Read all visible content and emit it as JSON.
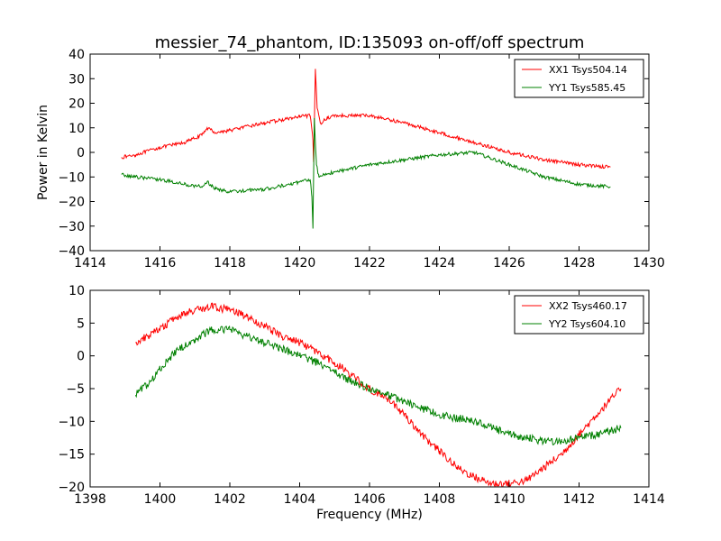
{
  "figure": {
    "title": "messier_74_phantom, ID:135093 on-off/off spectrum"
  },
  "chart_data": [
    {
      "type": "line",
      "title": "messier_74_phantom, ID:135093 on-off/off spectrum",
      "xlabel": "",
      "ylabel": "Power in Kelvin",
      "xlim": [
        1414,
        1430
      ],
      "ylim": [
        -40,
        40
      ],
      "xticks": [
        1414,
        1416,
        1418,
        1420,
        1422,
        1424,
        1426,
        1428,
        1430
      ],
      "yticks": [
        -40,
        -30,
        -20,
        -10,
        0,
        10,
        20,
        30,
        40
      ],
      "xtick_labels": [
        "1414",
        "1416",
        "1418",
        "1420",
        "1422",
        "1424",
        "1426",
        "1428",
        "1430"
      ],
      "ytick_labels": [
        "−40",
        "−30",
        "−20",
        "−10",
        "0",
        "10",
        "20",
        "30",
        "40"
      ],
      "grid": false,
      "legend": "top-right",
      "x_range": [
        1414.9,
        1428.9
      ],
      "series": [
        {
          "name": "XX1 Tsys504.14",
          "color": "#ff0000",
          "noise": 0.7,
          "x": [
            1414.9,
            1415.3,
            1416.0,
            1416.7,
            1417.2,
            1417.35,
            1417.6,
            1418.0,
            1419.0,
            1420.0,
            1420.3,
            1420.38,
            1420.4,
            1420.45,
            1420.5,
            1420.6,
            1420.8,
            1421.0,
            1422.0,
            1423.0,
            1424.0,
            1425.0,
            1426.0,
            1427.0,
            1428.0,
            1428.9
          ],
          "y": [
            -2,
            -1,
            2,
            4,
            7,
            10,
            8,
            9,
            12,
            14.5,
            15,
            5,
            -4,
            34,
            18,
            12,
            14,
            15,
            15,
            12,
            8,
            4,
            0,
            -3,
            -5,
            -6
          ]
        },
        {
          "name": "YY1 Tsys585.45",
          "color": "#008000",
          "noise": 0.7,
          "x": [
            1414.9,
            1415.3,
            1416.0,
            1416.7,
            1417.2,
            1417.35,
            1417.6,
            1418.0,
            1419.0,
            1420.0,
            1420.3,
            1420.35,
            1420.38,
            1420.42,
            1420.48,
            1420.55,
            1420.7,
            1421.0,
            1422.0,
            1423.0,
            1424.0,
            1425.0,
            1426.0,
            1427.0,
            1428.0,
            1428.9
          ],
          "y": [
            -9,
            -10,
            -11,
            -13,
            -14,
            -12,
            -15,
            -16,
            -15,
            -12,
            -11,
            -18,
            -31,
            14,
            -5,
            -10,
            -9,
            -8,
            -5,
            -3,
            -1,
            0,
            -5,
            -10,
            -13,
            -14
          ]
        }
      ]
    },
    {
      "type": "line",
      "title": "",
      "xlabel": "Frequency (MHz)",
      "ylabel": "",
      "xlim": [
        1398,
        1414
      ],
      "ylim": [
        -20,
        10
      ],
      "xticks": [
        1398,
        1400,
        1402,
        1404,
        1406,
        1408,
        1410,
        1412,
        1414
      ],
      "yticks": [
        -20,
        -15,
        -10,
        -5,
        0,
        5,
        10
      ],
      "xtick_labels": [
        "1398",
        "1400",
        "1402",
        "1404",
        "1406",
        "1408",
        "1410",
        "1412",
        "1414"
      ],
      "ytick_labels": [
        "−20",
        "−15",
        "−10",
        "−5",
        "0",
        "5",
        "10"
      ],
      "grid": false,
      "legend": "top-right",
      "x_range": [
        1399.3,
        1413.2
      ],
      "series": [
        {
          "name": "XX2 Tsys460.17",
          "color": "#ff0000",
          "noise": 0.6,
          "x": [
            1399.3,
            1400.0,
            1400.5,
            1401.0,
            1401.5,
            1402.0,
            1402.5,
            1403.0,
            1403.5,
            1404.0,
            1404.5,
            1405.0,
            1405.5,
            1406.0,
            1406.5,
            1407.0,
            1407.5,
            1408.0,
            1408.5,
            1409.0,
            1409.5,
            1410.0,
            1410.5,
            1411.0,
            1411.5,
            1412.0,
            1412.5,
            1413.2
          ],
          "y": [
            2,
            4,
            6,
            7,
            7.5,
            7,
            6,
            4.5,
            3,
            2,
            0.5,
            -1,
            -3,
            -5,
            -6.5,
            -9,
            -12,
            -14.5,
            -17,
            -18.5,
            -19.5,
            -19.5,
            -19,
            -17,
            -15,
            -12,
            -9,
            -5
          ]
        },
        {
          "name": "YY2 Tsys604.10",
          "color": "#008000",
          "noise": 0.6,
          "x": [
            1399.3,
            1399.7,
            1400.0,
            1400.5,
            1401.0,
            1401.5,
            1402.0,
            1402.5,
            1403.0,
            1403.5,
            1404.0,
            1404.5,
            1405.0,
            1405.5,
            1406.0,
            1406.5,
            1407.0,
            1407.5,
            1408.0,
            1408.5,
            1409.0,
            1409.5,
            1410.0,
            1410.5,
            1411.0,
            1411.5,
            1412.0,
            1412.5,
            1413.2
          ],
          "y": [
            -6,
            -4,
            -2,
            1,
            2.5,
            4,
            4,
            3,
            2,
            1,
            0,
            -1,
            -2.5,
            -4,
            -5,
            -6,
            -7,
            -8,
            -9,
            -9.5,
            -10,
            -11,
            -12,
            -12.5,
            -13,
            -13,
            -12.5,
            -12,
            -11
          ]
        }
      ]
    }
  ]
}
